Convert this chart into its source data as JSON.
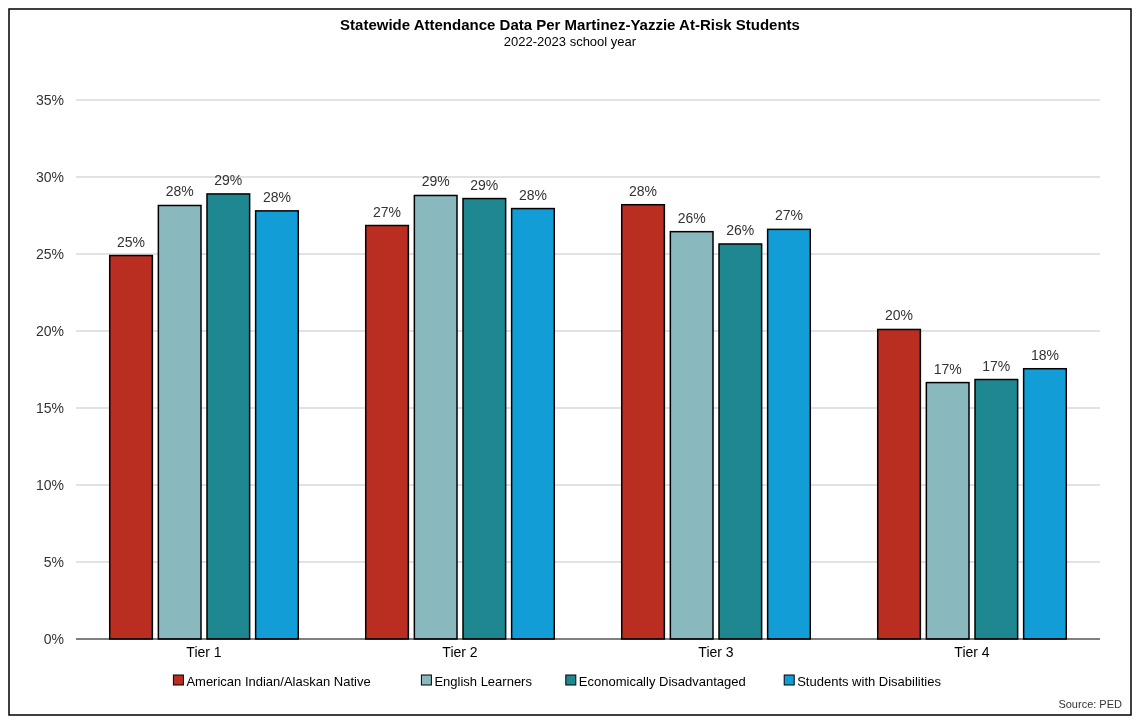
{
  "chart_data": {
    "type": "bar",
    "title": "Statewide Attendance Data Per Martinez-Yazzie At-Risk Students",
    "subtitle": "2022-2023 school year",
    "categories": [
      "Tier 1",
      "Tier 2",
      "Tier 3",
      "Tier 4"
    ],
    "series": [
      {
        "name": "American Indian/Alaskan Native",
        "color": "#b92e20",
        "values": [
          24.9,
          26.85,
          28.2,
          20.1
        ],
        "value_labels": [
          "25%",
          "27%",
          "28%",
          "20%"
        ]
      },
      {
        "name": "English Learners",
        "color": "#89b8bf",
        "values": [
          28.15,
          28.8,
          26.45,
          16.65
        ],
        "value_labels": [
          "28%",
          "29%",
          "26%",
          "17%"
        ]
      },
      {
        "name": "Economically Disadvantaged",
        "color": "#1e8790",
        "values": [
          28.9,
          28.6,
          25.65,
          16.85
        ],
        "value_labels": [
          "29%",
          "29%",
          "26%",
          "17%"
        ]
      },
      {
        "name": "Students with Disabilities",
        "color": "#129dd6",
        "values": [
          27.8,
          27.95,
          26.6,
          17.55
        ],
        "value_labels": [
          "28%",
          "28%",
          "27%",
          "18%"
        ]
      }
    ],
    "ylim": [
      0,
      35
    ],
    "yticks": [
      {
        "value": 0,
        "label": "0%"
      },
      {
        "value": 5,
        "label": "5%"
      },
      {
        "value": 10,
        "label": "10%"
      },
      {
        "value": 15,
        "label": "15%"
      },
      {
        "value": 20,
        "label": "20%"
      },
      {
        "value": 25,
        "label": "25%"
      },
      {
        "value": 30,
        "label": "30%"
      },
      {
        "value": 35,
        "label": "35%"
      }
    ],
    "grid": "y",
    "legend": "bottom",
    "annotations": [
      "Source: PED"
    ]
  }
}
